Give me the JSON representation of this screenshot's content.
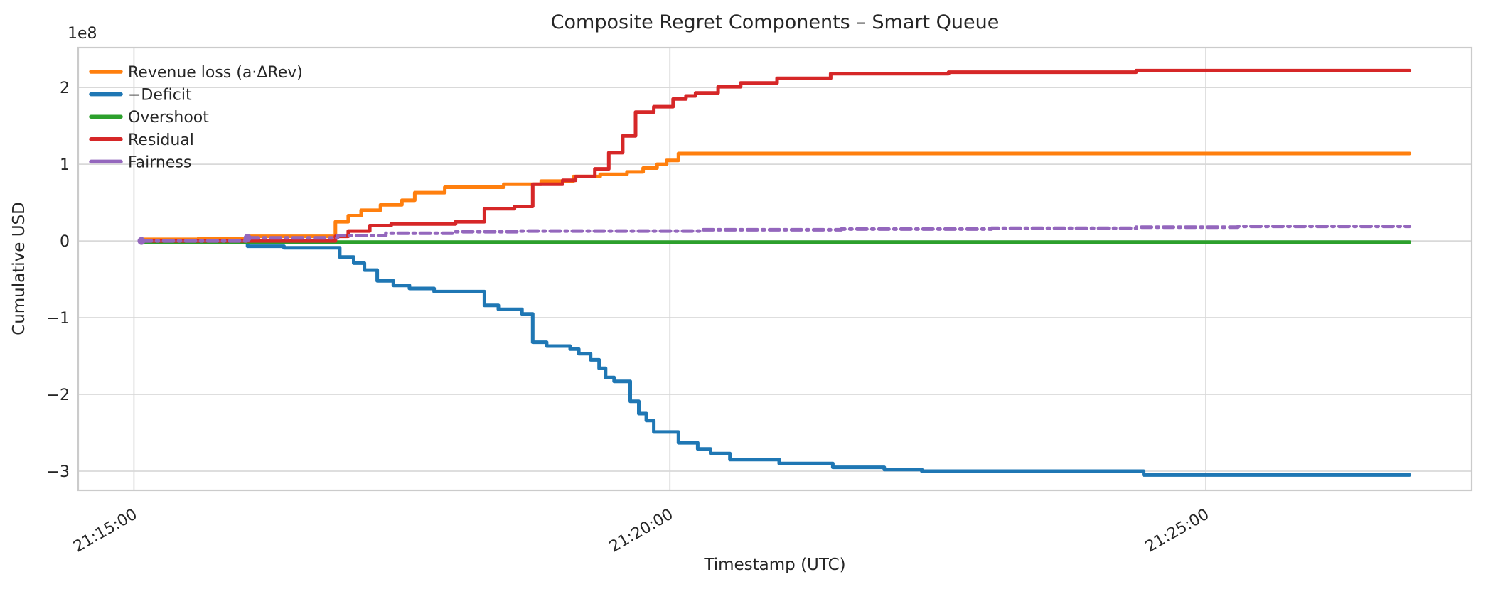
{
  "figure": {
    "title": "Composite Regret Components – Smart Queue",
    "xlabel": "Timestamp (UTC)",
    "ylabel": "Cumulative USD",
    "offset_text": "1e8"
  },
  "colors": {
    "background": "#ffffff",
    "grid": "#d9d9d9",
    "spine": "#cbcbcb",
    "text": "#262626"
  },
  "chart_data": {
    "type": "line",
    "subtype": "step-post cumulative time series",
    "title": "Composite Regret Components – Smart Queue",
    "xlabel": "Timestamp (UTC)",
    "ylabel": "Cumulative USD",
    "offset_text": "1e8",
    "x_unit": "minutes after 21:15:00 UTC",
    "y_unit": "USD, values in 1e8",
    "grid": true,
    "legend_position": "upper left",
    "xlim_minutes": [
      -0.52,
      12.48
    ],
    "ylim": [
      -3.25,
      2.52
    ],
    "x_ticks": [
      {
        "label": "21:15:00",
        "t": 0
      },
      {
        "label": "21:20:00",
        "t": 5
      },
      {
        "label": "21:25:00",
        "t": 10
      }
    ],
    "y_ticks": [
      {
        "label": "2",
        "v": 2
      },
      {
        "label": "1",
        "v": 1
      },
      {
        "label": "0",
        "v": 0
      },
      {
        "label": "−1",
        "v": -1
      },
      {
        "label": "−2",
        "v": -2
      },
      {
        "label": "−3",
        "v": -3
      }
    ],
    "series": [
      {
        "name": "Revenue loss (a·ΔRev)",
        "color": "#ff7f0e",
        "style": "solid",
        "points": [
          [
            0.07,
            0.02
          ],
          [
            0.6,
            0.03
          ],
          [
            1.06,
            0.06
          ],
          [
            1.88,
            0.25
          ],
          [
            2.0,
            0.33
          ],
          [
            2.12,
            0.4
          ],
          [
            2.3,
            0.47
          ],
          [
            2.5,
            0.53
          ],
          [
            2.62,
            0.63
          ],
          [
            2.9,
            0.7
          ],
          [
            3.45,
            0.74
          ],
          [
            3.8,
            0.78
          ],
          [
            4.1,
            0.84
          ],
          [
            4.35,
            0.87
          ],
          [
            4.6,
            0.9
          ],
          [
            4.75,
            0.95
          ],
          [
            4.88,
            1.0
          ],
          [
            4.97,
            1.05
          ],
          [
            5.08,
            1.14
          ],
          [
            11.9,
            1.14
          ]
        ]
      },
      {
        "name": "−Deficit",
        "color": "#1f77b4",
        "style": "solid",
        "points": [
          [
            0.07,
            -0.01
          ],
          [
            0.6,
            -0.02
          ],
          [
            1.06,
            -0.07
          ],
          [
            1.4,
            -0.09
          ],
          [
            1.92,
            -0.21
          ],
          [
            2.05,
            -0.29
          ],
          [
            2.15,
            -0.38
          ],
          [
            2.27,
            -0.52
          ],
          [
            2.42,
            -0.58
          ],
          [
            2.57,
            -0.62
          ],
          [
            2.8,
            -0.66
          ],
          [
            3.27,
            -0.84
          ],
          [
            3.4,
            -0.89
          ],
          [
            3.62,
            -0.95
          ],
          [
            3.72,
            -1.32
          ],
          [
            3.85,
            -1.37
          ],
          [
            4.07,
            -1.41
          ],
          [
            4.15,
            -1.47
          ],
          [
            4.26,
            -1.55
          ],
          [
            4.34,
            -1.66
          ],
          [
            4.4,
            -1.78
          ],
          [
            4.48,
            -1.83
          ],
          [
            4.63,
            -2.09
          ],
          [
            4.71,
            -2.25
          ],
          [
            4.78,
            -2.34
          ],
          [
            4.85,
            -2.49
          ],
          [
            5.08,
            -2.63
          ],
          [
            5.26,
            -2.71
          ],
          [
            5.38,
            -2.77
          ],
          [
            5.56,
            -2.85
          ],
          [
            6.02,
            -2.9
          ],
          [
            6.52,
            -2.95
          ],
          [
            7.0,
            -2.98
          ],
          [
            7.35,
            -3.0
          ],
          [
            9.42,
            -3.05
          ],
          [
            11.9,
            -3.05
          ]
        ]
      },
      {
        "name": "Overshoot",
        "color": "#2ca02c",
        "style": "solid",
        "points": [
          [
            0.07,
            -0.015
          ],
          [
            11.9,
            -0.015
          ]
        ]
      },
      {
        "name": "Residual",
        "color": "#d62728",
        "style": "solid",
        "points": [
          [
            0.07,
            0.0
          ],
          [
            1.88,
            0.06
          ],
          [
            2.0,
            0.13
          ],
          [
            2.2,
            0.2
          ],
          [
            2.4,
            0.22
          ],
          [
            3.0,
            0.25
          ],
          [
            3.27,
            0.42
          ],
          [
            3.55,
            0.45
          ],
          [
            3.72,
            0.74
          ],
          [
            4.0,
            0.79
          ],
          [
            4.12,
            0.84
          ],
          [
            4.3,
            0.94
          ],
          [
            4.43,
            1.15
          ],
          [
            4.56,
            1.37
          ],
          [
            4.68,
            1.68
          ],
          [
            4.85,
            1.75
          ],
          [
            5.03,
            1.85
          ],
          [
            5.15,
            1.89
          ],
          [
            5.24,
            1.93
          ],
          [
            5.45,
            2.01
          ],
          [
            5.66,
            2.06
          ],
          [
            6.0,
            2.12
          ],
          [
            6.5,
            2.18
          ],
          [
            7.6,
            2.2
          ],
          [
            9.35,
            2.22
          ],
          [
            11.9,
            2.22
          ]
        ]
      },
      {
        "name": "Fairness",
        "color": "#9467bd",
        "style": "dashdot",
        "marker_t": [
          0.07,
          1.06
        ],
        "points": [
          [
            0.07,
            0.0
          ],
          [
            1.06,
            0.04
          ],
          [
            1.9,
            0.07
          ],
          [
            2.35,
            0.1
          ],
          [
            3.0,
            0.12
          ],
          [
            3.6,
            0.13
          ],
          [
            5.3,
            0.145
          ],
          [
            6.6,
            0.155
          ],
          [
            8.0,
            0.165
          ],
          [
            9.35,
            0.18
          ],
          [
            10.3,
            0.19
          ],
          [
            11.9,
            0.19
          ]
        ]
      }
    ]
  }
}
